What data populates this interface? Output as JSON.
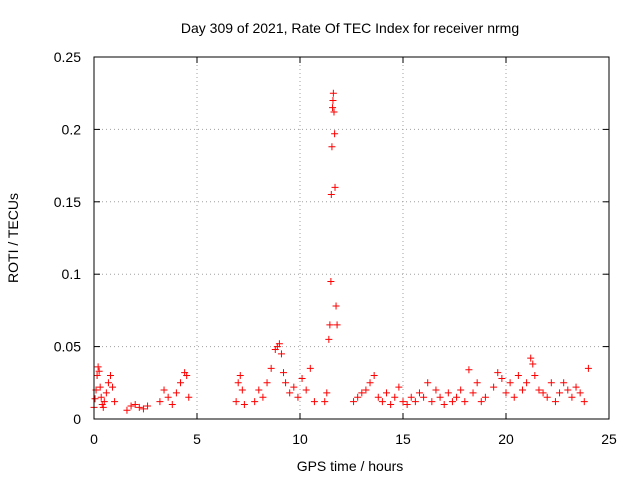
{
  "chart_data": {
    "type": "scatter",
    "title": "Day 309 of 2021, Rate Of TEC Index for receiver nrmg",
    "xlabel": "GPS time / hours",
    "ylabel": "ROTI / TECUs",
    "xlim": [
      0,
      25
    ],
    "ylim": [
      0,
      0.25
    ],
    "x_ticks": [
      0,
      5,
      10,
      15,
      20,
      25
    ],
    "x_tick_labels": [
      "0",
      "5",
      "10",
      "15",
      "20",
      "25"
    ],
    "y_ticks": [
      0,
      0.05,
      0.1,
      0.15,
      0.2,
      0.25
    ],
    "y_tick_labels": [
      "0",
      "0.05",
      "0.1",
      "0.15",
      "0.2",
      "0.25"
    ],
    "grid": true,
    "marker": "+",
    "color": "#ff0000",
    "series": [
      {
        "name": "ROTI",
        "x": [
          0.0,
          0.05,
          0.1,
          0.15,
          0.2,
          0.25,
          0.3,
          0.35,
          0.4,
          0.45,
          0.5,
          0.6,
          0.7,
          0.8,
          0.9,
          1.0,
          1.6,
          1.8,
          2.0,
          2.2,
          2.4,
          2.6,
          3.2,
          3.4,
          3.6,
          3.8,
          4.0,
          4.2,
          4.4,
          4.5,
          4.6,
          6.9,
          7.0,
          7.1,
          7.2,
          7.3,
          7.8,
          8.0,
          8.2,
          8.4,
          8.6,
          8.8,
          8.9,
          9.0,
          9.1,
          9.2,
          9.3,
          9.5,
          9.7,
          9.9,
          10.1,
          10.3,
          10.5,
          10.7,
          11.2,
          11.3,
          11.4,
          11.45,
          11.5,
          11.52,
          11.55,
          11.58,
          11.6,
          11.62,
          11.65,
          11.68,
          11.7,
          11.75,
          11.8,
          12.6,
          12.8,
          13.0,
          13.2,
          13.4,
          13.6,
          13.8,
          14.0,
          14.2,
          14.4,
          14.6,
          14.8,
          15.0,
          15.2,
          15.4,
          15.6,
          15.8,
          16.0,
          16.2,
          16.4,
          16.6,
          16.8,
          17.0,
          17.2,
          17.4,
          17.6,
          17.8,
          18.0,
          18.2,
          18.4,
          18.6,
          18.8,
          19.0,
          19.4,
          19.6,
          19.8,
          20.0,
          20.2,
          20.4,
          20.6,
          20.8,
          21.0,
          21.2,
          21.3,
          21.4,
          21.6,
          21.8,
          22.0,
          22.2,
          22.4,
          22.6,
          22.8,
          23.0,
          23.2,
          23.4,
          23.6,
          23.8,
          24.0
        ],
        "y": [
          0.008,
          0.014,
          0.02,
          0.03,
          0.036,
          0.033,
          0.022,
          0.015,
          0.01,
          0.008,
          0.012,
          0.018,
          0.025,
          0.03,
          0.022,
          0.012,
          0.006,
          0.009,
          0.01,
          0.008,
          0.007,
          0.009,
          0.012,
          0.02,
          0.015,
          0.01,
          0.018,
          0.025,
          0.032,
          0.03,
          0.015,
          0.012,
          0.025,
          0.03,
          0.02,
          0.01,
          0.012,
          0.02,
          0.015,
          0.025,
          0.035,
          0.048,
          0.05,
          0.052,
          0.045,
          0.032,
          0.025,
          0.018,
          0.022,
          0.015,
          0.028,
          0.02,
          0.035,
          0.012,
          0.012,
          0.018,
          0.055,
          0.065,
          0.095,
          0.155,
          0.188,
          0.215,
          0.22,
          0.225,
          0.212,
          0.197,
          0.16,
          0.078,
          0.065,
          0.012,
          0.015,
          0.018,
          0.02,
          0.025,
          0.03,
          0.015,
          0.012,
          0.018,
          0.01,
          0.015,
          0.022,
          0.012,
          0.01,
          0.015,
          0.012,
          0.018,
          0.015,
          0.025,
          0.012,
          0.02,
          0.015,
          0.01,
          0.018,
          0.012,
          0.015,
          0.02,
          0.012,
          0.034,
          0.018,
          0.025,
          0.012,
          0.015,
          0.022,
          0.032,
          0.028,
          0.018,
          0.025,
          0.015,
          0.03,
          0.02,
          0.025,
          0.042,
          0.038,
          0.03,
          0.02,
          0.018,
          0.015,
          0.025,
          0.012,
          0.018,
          0.025,
          0.02,
          0.015,
          0.022,
          0.018,
          0.012,
          0.035
        ]
      }
    ]
  }
}
